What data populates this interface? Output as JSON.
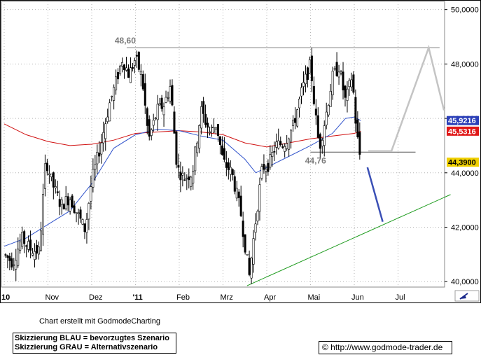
{
  "chart_data": {
    "type": "candlestick",
    "x_ticks": [
      "10",
      "Nov",
      "Dez",
      "'11",
      "Feb",
      "Mrz",
      "Apr",
      "Mai",
      "Jun",
      "Jul"
    ],
    "y_ticks": [
      "40,0000",
      "42,0000",
      "44,0000",
      "46,0000",
      "48,0000",
      "50,0000"
    ],
    "ylim": [
      39.8,
      50.3
    ],
    "price_labels": [
      {
        "text": "45,9216",
        "value": 45.92,
        "color": "#2b3fb8"
      },
      {
        "text": "45,5316",
        "value": 45.53,
        "color": "#e01818"
      },
      {
        "text": "44,3900",
        "value": 44.39,
        "color": "#f0d000"
      }
    ],
    "annotations": [
      {
        "text": "48,60",
        "value": 48.6,
        "month": 2.75
      },
      {
        "text": "44,76",
        "value": 44.76,
        "month": 7.1
      }
    ],
    "resistance": {
      "value": 48.6,
      "from_month": 2.8,
      "to_month": 9.95
    },
    "support": {
      "value": 44.76,
      "from_month": 7.0,
      "to_month": 9.4
    },
    "trendline": {
      "from": [
        5.55,
        39.85
      ],
      "to": [
        10.2,
        43.2
      ]
    },
    "sma_red": [
      [
        0.0,
        45.8
      ],
      [
        0.5,
        45.4
      ],
      [
        1.0,
        45.15
      ],
      [
        1.5,
        45.0
      ],
      [
        2.0,
        45.05
      ],
      [
        2.5,
        45.2
      ],
      [
        3.0,
        45.45
      ],
      [
        3.5,
        45.5
      ],
      [
        4.0,
        45.55
      ],
      [
        4.5,
        45.5
      ],
      [
        5.0,
        45.4
      ],
      [
        5.5,
        45.1
      ],
      [
        6.0,
        44.95
      ],
      [
        6.5,
        45.1
      ],
      [
        7.0,
        45.25
      ],
      [
        7.5,
        45.35
      ],
      [
        8.0,
        45.45
      ],
      [
        8.15,
        45.53
      ]
    ],
    "sma_blue": [
      [
        0.0,
        41.3
      ],
      [
        0.5,
        41.6
      ],
      [
        1.0,
        42.1
      ],
      [
        1.5,
        42.6
      ],
      [
        2.0,
        43.6
      ],
      [
        2.5,
        44.9
      ],
      [
        3.0,
        45.4
      ],
      [
        3.5,
        45.6
      ],
      [
        4.0,
        45.55
      ],
      [
        4.5,
        45.35
      ],
      [
        5.0,
        45.2
      ],
      [
        5.5,
        44.5
      ],
      [
        5.75,
        44.0
      ],
      [
        6.0,
        44.2
      ],
      [
        6.5,
        44.6
      ],
      [
        7.0,
        45.0
      ],
      [
        7.5,
        45.45
      ],
      [
        7.8,
        46.0
      ],
      [
        8.0,
        46.05
      ],
      [
        8.15,
        45.92
      ]
    ],
    "price_path": [
      [
        0.0,
        41.0
      ],
      [
        0.2,
        40.7
      ],
      [
        0.4,
        41.6
      ],
      [
        0.6,
        41.2
      ],
      [
        0.8,
        41.1
      ],
      [
        0.95,
        44.5
      ],
      [
        1.1,
        43.6
      ],
      [
        1.3,
        42.8
      ],
      [
        1.5,
        43.1
      ],
      [
        1.7,
        42.4
      ],
      [
        1.85,
        41.9
      ],
      [
        2.0,
        43.7
      ],
      [
        2.2,
        45.0
      ],
      [
        2.4,
        46.5
      ],
      [
        2.55,
        47.3
      ],
      [
        2.7,
        48.2
      ],
      [
        2.85,
        47.6
      ],
      [
        3.0,
        48.2
      ],
      [
        3.15,
        47.5
      ],
      [
        3.3,
        45.2
      ],
      [
        3.5,
        46.3
      ],
      [
        3.65,
        46.5
      ],
      [
        3.8,
        47.2
      ],
      [
        3.95,
        44.2
      ],
      [
        4.1,
        43.8
      ],
      [
        4.3,
        44.0
      ],
      [
        4.5,
        46.3
      ],
      [
        4.7,
        45.5
      ],
      [
        4.85,
        45.8
      ],
      [
        5.0,
        44.4
      ],
      [
        5.2,
        44.0
      ],
      [
        5.4,
        42.6
      ],
      [
        5.6,
        40.2
      ],
      [
        5.75,
        42.3
      ],
      [
        5.9,
        44.2
      ],
      [
        6.05,
        44.3
      ],
      [
        6.2,
        45.0
      ],
      [
        6.4,
        45.1
      ],
      [
        6.6,
        45.7
      ],
      [
        6.8,
        47.0
      ],
      [
        7.0,
        48.0
      ],
      [
        7.1,
        46.3
      ],
      [
        7.2,
        44.9
      ],
      [
        7.35,
        46.1
      ],
      [
        7.5,
        47.5
      ],
      [
        7.65,
        47.9
      ],
      [
        7.8,
        46.6
      ],
      [
        7.95,
        47.6
      ],
      [
        8.05,
        45.5
      ],
      [
        8.15,
        44.4
      ]
    ],
    "scenario_blue": [
      [
        8.3,
        44.2
      ],
      [
        8.65,
        42.2
      ]
    ],
    "scenario_gray": [
      [
        8.32,
        44.8
      ],
      [
        8.85,
        44.8
      ],
      [
        9.7,
        48.6
      ],
      [
        10.05,
        46.3
      ]
    ]
  },
  "footer": {
    "credit": "Chart erstellt mit GodmodeCharting",
    "legend_blue": "Skizzierung BLAU = bevorzugtes Szenario",
    "legend_gray": "Skizzierung GRAU = Alternativszenario",
    "source": "© http://www.godmode-trader.de"
  }
}
